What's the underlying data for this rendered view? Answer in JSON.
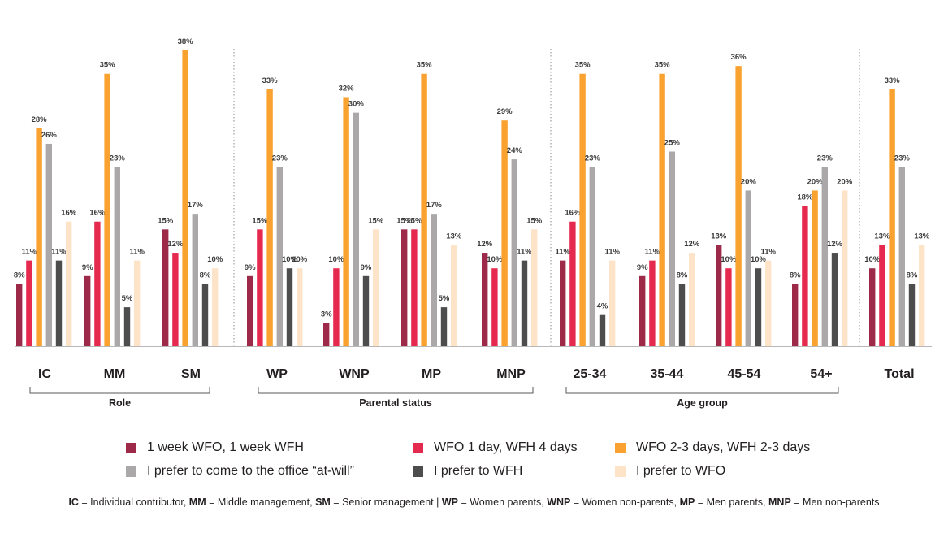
{
  "chart_data": {
    "type": "bar",
    "series": [
      {
        "name": "1 week WFO, 1 week WFH",
        "color": "#9e2a4a",
        "values": [
          8,
          9,
          15,
          9,
          3,
          15,
          12,
          11,
          9,
          13,
          8,
          10
        ]
      },
      {
        "name": "WFO 1 day, WFH 4 days",
        "color": "#e5294f",
        "values": [
          11,
          16,
          12,
          15,
          10,
          15,
          10,
          16,
          11,
          10,
          18,
          13
        ]
      },
      {
        "name": "WFO 2-3 days, WFH 2-3 days",
        "color": "#f9a22f",
        "values": [
          28,
          35,
          38,
          33,
          32,
          35,
          29,
          35,
          35,
          36,
          20,
          33
        ]
      },
      {
        "name": "I prefer to come to the office “at-will”",
        "color": "#aaa8a8",
        "values": [
          26,
          23,
          17,
          23,
          30,
          17,
          24,
          23,
          25,
          20,
          23,
          23
        ]
      },
      {
        "name": "I prefer to WFH",
        "color": "#4d4d4d",
        "values": [
          11,
          5,
          8,
          10,
          9,
          5,
          11,
          4,
          8,
          10,
          12,
          8
        ]
      },
      {
        "name": "I prefer to WFO",
        "color": "#fde3c7",
        "values": [
          16,
          11,
          10,
          10,
          15,
          13,
          15,
          11,
          12,
          11,
          20,
          13
        ]
      }
    ],
    "categories": [
      "IC",
      "MM",
      "SM",
      "WP",
      "WNP",
      "MP",
      "MNP",
      "25-34",
      "35-44",
      "45-54",
      "54+",
      "Total"
    ],
    "groups": [
      {
        "label": "Role",
        "categories": [
          "IC",
          "MM",
          "SM"
        ]
      },
      {
        "label": "Parental status",
        "categories": [
          "WP",
          "WNP",
          "MP",
          "MNP"
        ]
      },
      {
        "label": "Age group",
        "categories": [
          "25-34",
          "35-44",
          "45-54",
          "54+"
        ]
      },
      {
        "label": "",
        "categories": [
          "Total"
        ]
      }
    ],
    "value_suffix": "%",
    "ylim": [
      0,
      40
    ],
    "title": "",
    "xlabel": "",
    "ylabel": ""
  },
  "legend_title": "",
  "footnote": {
    "parts": [
      {
        "abbr": "IC",
        "text": " = Individual contributor,  "
      },
      {
        "abbr": "MM",
        "text": " = Middle management, "
      },
      {
        "abbr": "SM",
        "text": " = Senior management | "
      },
      {
        "abbr": "WP",
        "text": " = Women parents, "
      },
      {
        "abbr": "WNP",
        "text": " = Women non-parents, "
      },
      {
        "abbr": "MP",
        "text": " = Men parents, "
      },
      {
        "abbr": "MNP",
        "text": " = Men non-parents"
      }
    ]
  }
}
